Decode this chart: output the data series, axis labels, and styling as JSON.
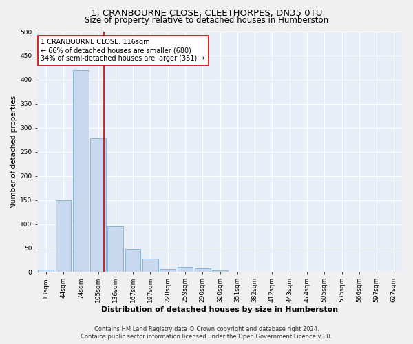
{
  "title": "1, CRANBOURNE CLOSE, CLEETHORPES, DN35 0TU",
  "subtitle": "Size of property relative to detached houses in Humberston",
  "xlabel": "Distribution of detached houses by size in Humberston",
  "ylabel": "Number of detached properties",
  "bar_color": "#c8d8ee",
  "bar_edge_color": "#7aaed4",
  "categories": [
    "13sqm",
    "44sqm",
    "74sqm",
    "105sqm",
    "136sqm",
    "167sqm",
    "197sqm",
    "228sqm",
    "259sqm",
    "290sqm",
    "320sqm",
    "351sqm",
    "382sqm",
    "412sqm",
    "443sqm",
    "474sqm",
    "505sqm",
    "535sqm",
    "566sqm",
    "597sqm",
    "627sqm"
  ],
  "values": [
    5,
    150,
    420,
    278,
    95,
    48,
    28,
    6,
    10,
    8,
    3,
    0,
    0,
    0,
    0,
    0,
    0,
    0,
    0,
    0,
    0
  ],
  "ylim": [
    0,
    500
  ],
  "yticks": [
    0,
    50,
    100,
    150,
    200,
    250,
    300,
    350,
    400,
    450,
    500
  ],
  "vline_x": 3.35,
  "vline_color": "#cc0000",
  "annotation_text": "1 CRANBOURNE CLOSE: 116sqm\n← 66% of detached houses are smaller (680)\n34% of semi-detached houses are larger (351) →",
  "annotation_box_color": "#ffffff",
  "annotation_edge_color": "#cc0000",
  "footer_line1": "Contains HM Land Registry data © Crown copyright and database right 2024.",
  "footer_line2": "Contains public sector information licensed under the Open Government Licence v3.0.",
  "fig_bg_color": "#f0f0f0",
  "plot_bg_color": "#e8eef8",
  "grid_color": "#ffffff",
  "title_fontsize": 9.5,
  "subtitle_fontsize": 8.5,
  "xlabel_fontsize": 8,
  "ylabel_fontsize": 7.5,
  "tick_fontsize": 6.5,
  "annotation_fontsize": 7,
  "footer_fontsize": 6
}
